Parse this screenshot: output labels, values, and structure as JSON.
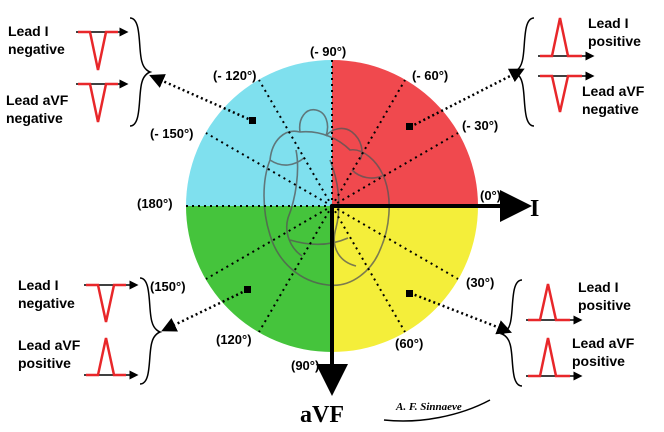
{
  "quadrants": {
    "upper_left": {
      "color": "#7fe0ee"
    },
    "upper_right": {
      "color": "#f0494e"
    },
    "lower_left": {
      "color": "#45c43c"
    },
    "lower_right": {
      "color": "#f4ee3a"
    }
  },
  "angles": {
    "a_m90": "(- 90°)",
    "a_m120": "(- 120°)",
    "a_m60": "(- 60°)",
    "a_m150": "(- 150°)",
    "a_m30": "(- 30°)",
    "a_180": "(180°)",
    "a_0": "(0°)",
    "a_150": "(150°)",
    "a_30": "(30°)",
    "a_120": "(120°)",
    "a_60": "(60°)",
    "a_90": "(90°)"
  },
  "axes": {
    "lead_i": "I",
    "avf": "aVF"
  },
  "boxes": {
    "top_left": {
      "line1": [
        "Lead I",
        "negative"
      ],
      "line2": [
        "Lead aVF",
        "negative"
      ]
    },
    "top_right": {
      "line1": [
        "Lead I",
        "positive"
      ],
      "line2": [
        "Lead aVF",
        "negative"
      ]
    },
    "bottom_left": {
      "line1": [
        "Lead I",
        "negative"
      ],
      "line2": [
        "Lead aVF",
        "positive"
      ]
    },
    "bottom_right": {
      "line1": [
        "Lead I",
        "positive"
      ],
      "line2": [
        "Lead aVF",
        "positive"
      ]
    }
  },
  "signature": "A. F. Sinnaeve",
  "waveform_color": "#e8272a"
}
